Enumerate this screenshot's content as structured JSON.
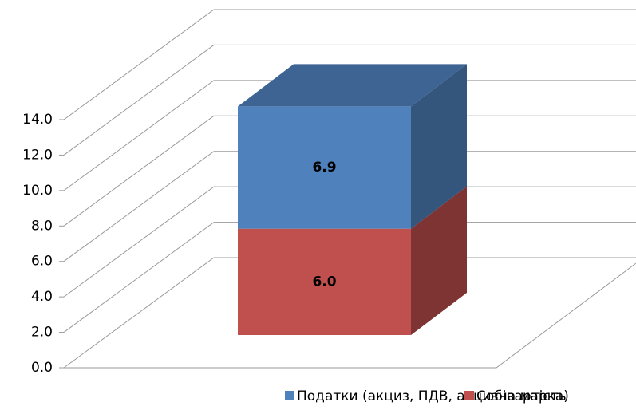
{
  "chart_data": {
    "type": "bar3d_stacked",
    "categories": [
      null
    ],
    "series": [
      {
        "name": "Податки (акциз, ПДВ, акцизна марка)",
        "color": "#4f81bd",
        "values": [
          6.9
        ]
      },
      {
        "name": "Собівартість",
        "color": "#c0504d",
        "values": [
          6
        ],
        "value_labels": [
          "6.0"
        ]
      }
    ],
    "ylim": [
      0,
      14
    ],
    "yticks": [
      {
        "value": 0,
        "label": "0.0"
      },
      {
        "value": 2,
        "label": "2.0"
      },
      {
        "value": 4,
        "label": "4.0"
      },
      {
        "value": 6,
        "label": "6.0"
      },
      {
        "value": 8,
        "label": "8.0"
      },
      {
        "value": 10,
        "label": "10.0"
      },
      {
        "value": 12,
        "label": "12.0"
      },
      {
        "value": 14,
        "label": "14.0"
      }
    ],
    "grid": true,
    "legend": "bottom"
  }
}
